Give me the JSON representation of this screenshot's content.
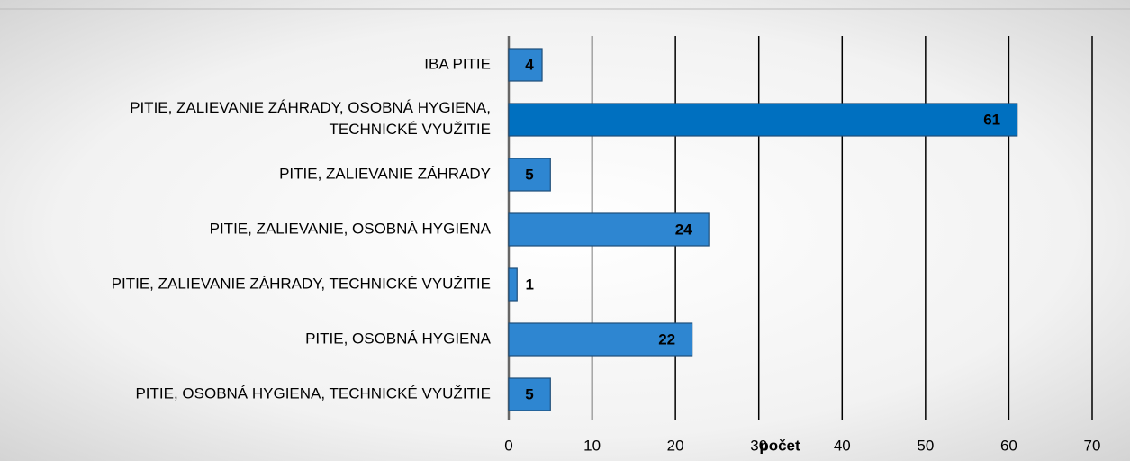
{
  "chart_data": {
    "type": "barh",
    "x_label": "počet",
    "categories": [
      "IBA PITIE",
      "PITIE, ZALIEVANIE ZÁHRADY, OSOBNÁ HYGIENA,\nTECHNICKÉ VYUŽITIE",
      "PITIE, ZALIEVANIE ZÁHRADY",
      "PITIE, ZALIEVANIE, OSOBNÁ HYGIENA",
      "PITIE, ZALIEVANIE ZÁHRADY, TECHNICKÉ VYUŽITIE",
      "PITIE, OSOBNÁ HYGIENA",
      "PITIE, OSOBNÁ HYGIENA, TECHNICKÉ VYUŽITIE"
    ],
    "values": [
      4,
      61,
      5,
      24,
      1,
      22,
      5
    ],
    "colors": [
      "#2e86d1",
      "#0070c0",
      "#2e86d1",
      "#2e86d1",
      "#2e86d1",
      "#2e86d1",
      "#2e86d1"
    ],
    "xlim": [
      0,
      70
    ],
    "xticks": [
      0,
      10,
      20,
      30,
      40,
      50,
      60,
      70
    ],
    "grid": true
  }
}
